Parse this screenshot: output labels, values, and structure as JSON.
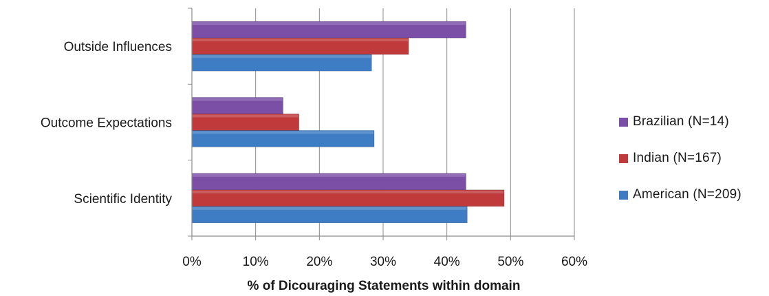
{
  "chart_data": {
    "type": "bar",
    "orientation": "horizontal",
    "categories": [
      "Outside Influences",
      "Outcome Expectations",
      "Scientific Identity"
    ],
    "series": [
      {
        "name": "Brazilian (N=14)",
        "values": [
          43,
          14.3,
          43
        ],
        "color": "#7b4fa6"
      },
      {
        "name": "Indian (N=167)",
        "values": [
          34,
          16.8,
          49
        ],
        "color": "#c0393b"
      },
      {
        "name": "American (N=209)",
        "values": [
          28.2,
          28.6,
          43.2
        ],
        "color": "#3e7cc4"
      }
    ],
    "legend_order": [
      0,
      1,
      2
    ],
    "xlabel": "% of Dicouraging  Statements within domain",
    "ylabel": "",
    "xlim": [
      0,
      60
    ],
    "xticks": [
      "0%",
      "10%",
      "20%",
      "30%",
      "40%",
      "50%",
      "60%"
    ],
    "grid": "vertical major gridlines",
    "legend_position": "right"
  }
}
